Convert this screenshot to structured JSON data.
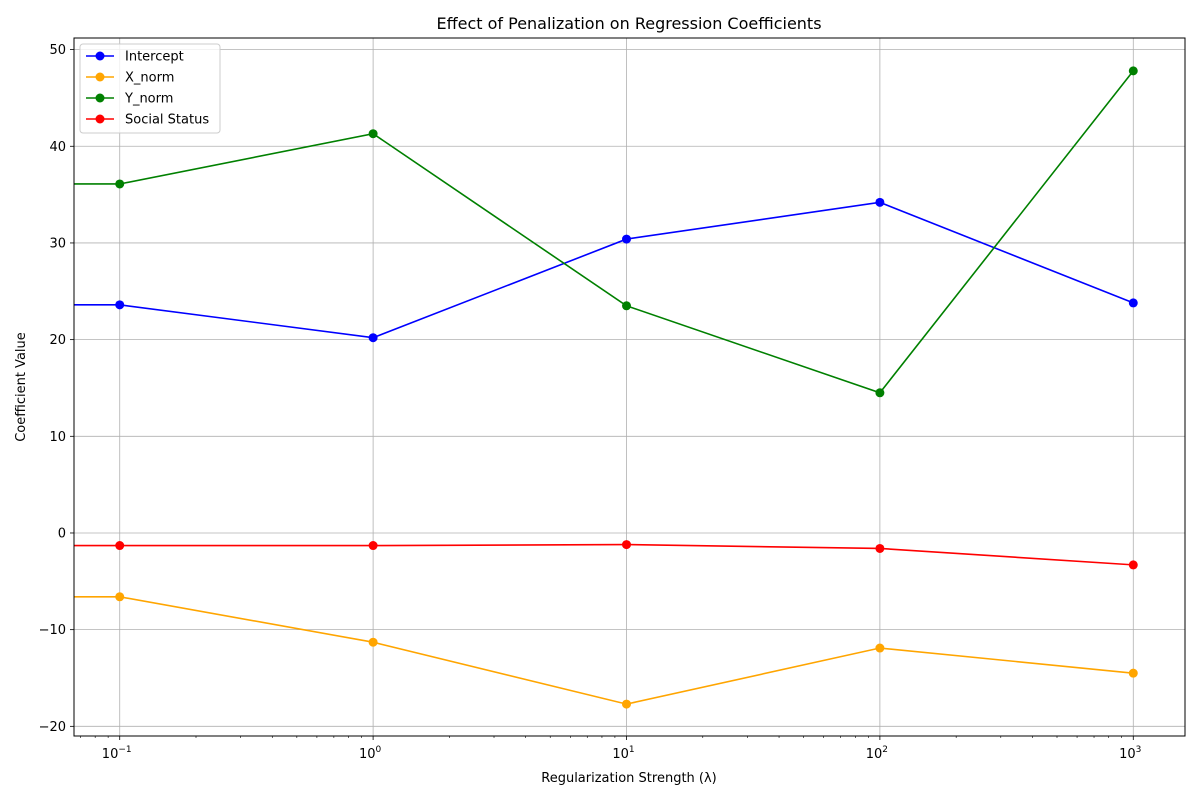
{
  "chart_data": {
    "type": "line",
    "title": "Effect of Penalization on Regression Coefficients",
    "xlabel": "Regularization Strength (λ)",
    "ylabel": "Coefficient Value",
    "xscale": "log",
    "x": [
      0.1,
      1,
      10,
      100,
      1000
    ],
    "xlim": [
      0.066,
      1600
    ],
    "ylim": [
      -21,
      51.2
    ],
    "x_ticks": [
      {
        "value": 0.1,
        "base": "10",
        "exp": "−1"
      },
      {
        "value": 1,
        "base": "10",
        "exp": "0"
      },
      {
        "value": 10,
        "base": "10",
        "exp": "1"
      },
      {
        "value": 100,
        "base": "10",
        "exp": "2"
      },
      {
        "value": 1000,
        "base": "10",
        "exp": "3"
      }
    ],
    "y_ticks": [
      {
        "value": -20,
        "label": "−20"
      },
      {
        "value": -10,
        "label": "−10"
      },
      {
        "value": 0,
        "label": "0"
      },
      {
        "value": 10,
        "label": "10"
      },
      {
        "value": 20,
        "label": "20"
      },
      {
        "value": 30,
        "label": "30"
      },
      {
        "value": 40,
        "label": "40"
      },
      {
        "value": 50,
        "label": "50"
      }
    ],
    "grid": true,
    "legend_position": "top-left",
    "series": [
      {
        "name": "Intercept",
        "color": "#0000ff",
        "values": [
          23.6,
          20.2,
          30.4,
          34.2,
          23.8
        ]
      },
      {
        "name": "X_norm",
        "color": "#ffa500",
        "values": [
          -6.6,
          -11.3,
          -17.7,
          -11.9,
          -14.5
        ]
      },
      {
        "name": "Y_norm",
        "color": "#008000",
        "values": [
          36.1,
          41.3,
          23.5,
          14.5,
          47.8
        ]
      },
      {
        "name": "Social Status",
        "color": "#ff0000",
        "values": [
          -1.3,
          -1.3,
          -1.2,
          -1.6,
          -3.3
        ]
      }
    ]
  }
}
